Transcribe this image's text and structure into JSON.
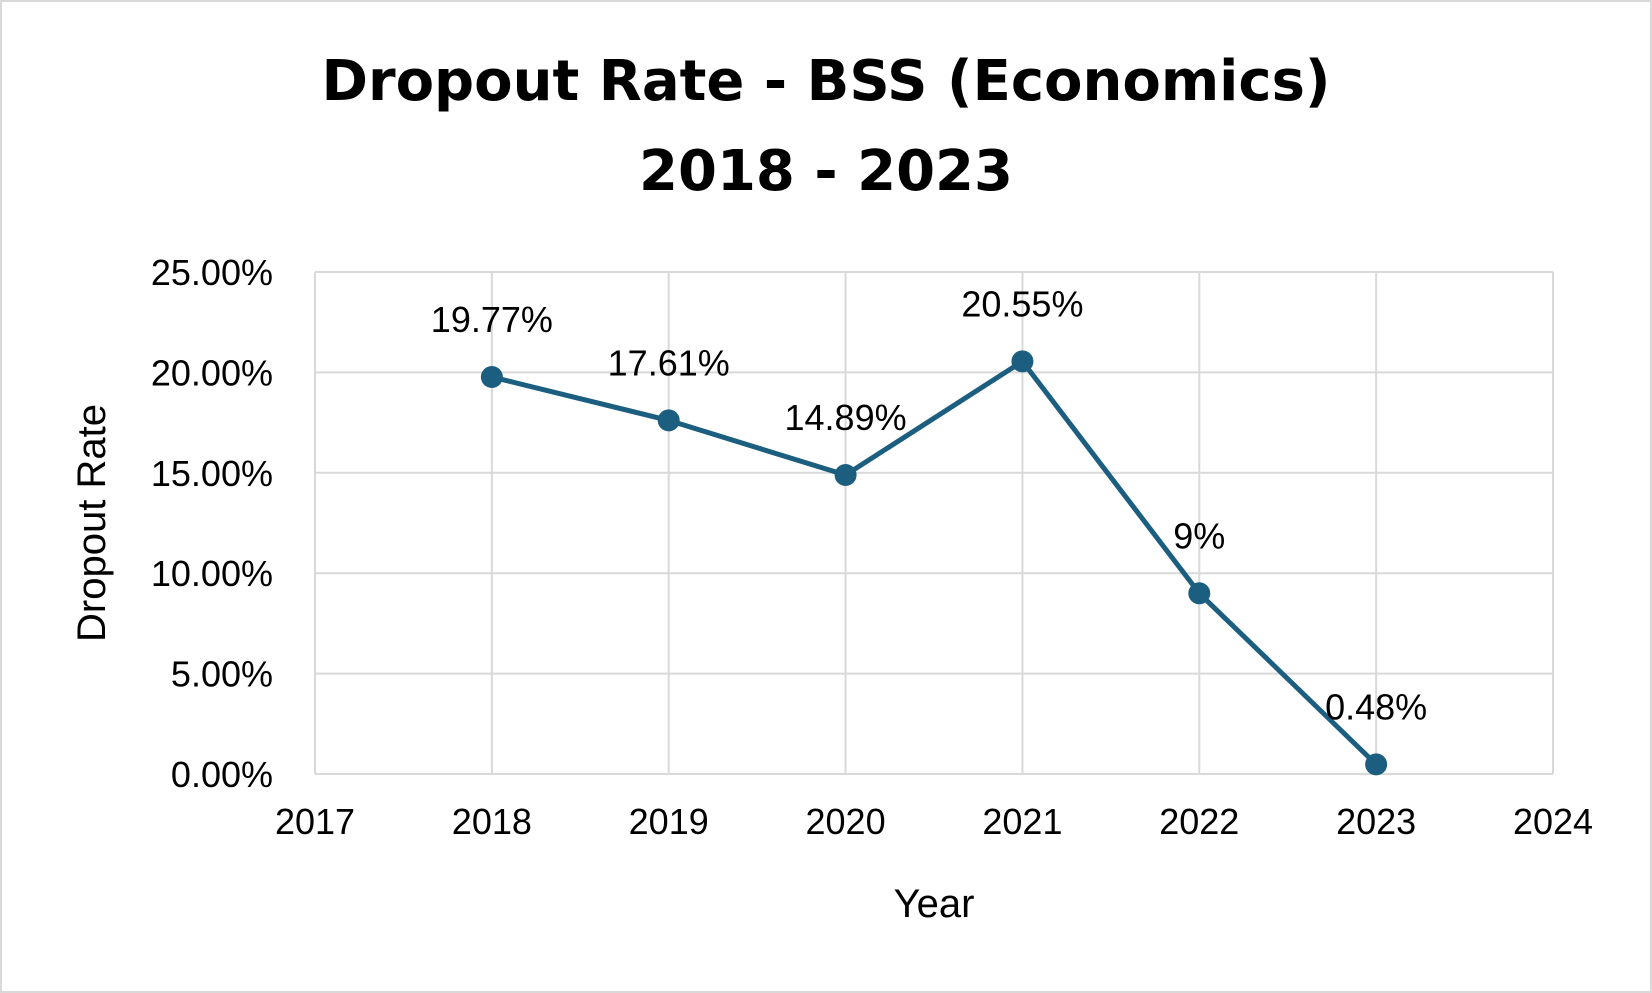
{
  "chart_data": {
    "type": "scatter",
    "title_lines": [
      "Dropout Rate - BSS (Economics)",
      "2018 - 2023"
    ],
    "xlabel": "Year",
    "ylabel": "Dropout Rate",
    "xlim": [
      2017,
      2024
    ],
    "ylim": [
      0,
      0.25
    ],
    "x_ticks": [
      "2017",
      "2018",
      "2019",
      "2020",
      "2021",
      "2022",
      "2023",
      "2024"
    ],
    "y_ticks": [
      "0.00%",
      "5.00%",
      "10.00%",
      "15.00%",
      "20.00%",
      "25.00%"
    ],
    "grid": true,
    "legend": "none",
    "series": [
      {
        "x": [
          2018,
          2019,
          2020,
          2021,
          2022,
          2023
        ],
        "values": [
          0.1977,
          0.1761,
          0.1489,
          0.2055,
          0.09,
          0.0048
        ],
        "labels": [
          "19.77%",
          "17.61%",
          "14.89%",
          "20.55%",
          "9%",
          "0.48%"
        ],
        "color": "#1b5e80"
      }
    ]
  }
}
